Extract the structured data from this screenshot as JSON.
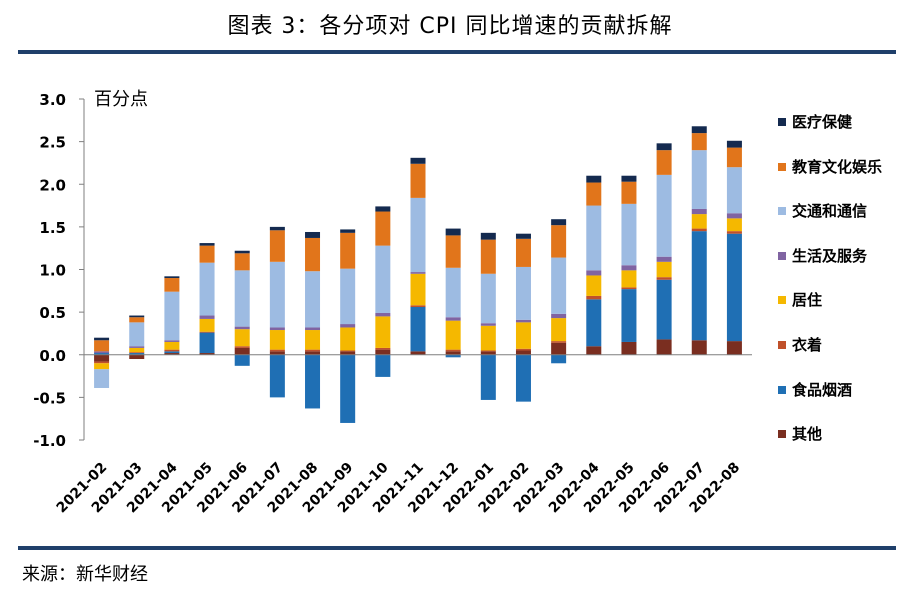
{
  "header": {
    "title": "图表 3：各分项对 CPI 同比增速的贡献拆解"
  },
  "footer": {
    "source": "来源：新华财经"
  },
  "chart_data": {
    "type": "bar",
    "stacked": true,
    "unit_label": "百分点",
    "ylim": [
      -1.0,
      3.0
    ],
    "yticks": [
      "3.0",
      "2.5",
      "2.0",
      "1.5",
      "1.0",
      "0.5",
      "0.0",
      "-0.5",
      "-1.0"
    ],
    "ytick_values": [
      3.0,
      2.5,
      2.0,
      1.5,
      1.0,
      0.5,
      0.0,
      -0.5,
      -1.0
    ],
    "legend_position": "right",
    "categories": [
      "2021-02",
      "2021-03",
      "2021-04",
      "2021-05",
      "2021-06",
      "2021-07",
      "2021-08",
      "2021-09",
      "2021-10",
      "2021-11",
      "2021-12",
      "2022-01",
      "2022-02",
      "2022-03",
      "2022-04",
      "2022-05",
      "2022-06",
      "2022-07",
      "2022-08"
    ],
    "series": [
      {
        "name": "其他",
        "color": "#7a2e20",
        "values": [
          -0.08,
          -0.05,
          0.02,
          0.02,
          0.08,
          0.04,
          0.04,
          0.04,
          0.06,
          0.04,
          0.04,
          0.04,
          0.05,
          0.14,
          0.1,
          0.15,
          0.18,
          0.17,
          0.16
        ]
      },
      {
        "name": "食品烟酒",
        "color": "#1f6fb4",
        "values": [
          0.02,
          0.02,
          0.02,
          0.24,
          -0.13,
          -0.5,
          -0.63,
          -0.8,
          -0.26,
          0.52,
          -0.03,
          -0.53,
          -0.55,
          -0.1,
          0.55,
          0.62,
          0.7,
          1.28,
          1.26
        ]
      },
      {
        "name": "衣着",
        "color": "#c0502a",
        "values": [
          -0.02,
          0.01,
          0.02,
          0.01,
          0.02,
          0.02,
          0.02,
          0.01,
          0.02,
          0.02,
          0.02,
          0.01,
          0.02,
          0.02,
          0.04,
          0.02,
          0.03,
          0.03,
          0.03
        ]
      },
      {
        "name": "居住",
        "color": "#f5b800",
        "values": [
          -0.07,
          0.05,
          0.09,
          0.15,
          0.2,
          0.23,
          0.23,
          0.27,
          0.37,
          0.37,
          0.34,
          0.29,
          0.31,
          0.27,
          0.24,
          0.2,
          0.18,
          0.17,
          0.15
        ]
      },
      {
        "name": "生活及服务",
        "color": "#8064a2",
        "values": [
          0.02,
          0.02,
          0.02,
          0.04,
          0.03,
          0.03,
          0.03,
          0.04,
          0.04,
          0.02,
          0.04,
          0.03,
          0.03,
          0.05,
          0.06,
          0.06,
          0.06,
          0.06,
          0.06
        ]
      },
      {
        "name": "交通和通信",
        "color": "#9dbbe2",
        "values": [
          -0.22,
          0.28,
          0.57,
          0.62,
          0.66,
          0.77,
          0.66,
          0.65,
          0.79,
          0.87,
          0.58,
          0.58,
          0.62,
          0.66,
          0.76,
          0.72,
          0.96,
          0.69,
          0.54
        ]
      },
      {
        "name": "教育文化娱乐",
        "color": "#e1751b",
        "values": [
          0.13,
          0.06,
          0.16,
          0.2,
          0.2,
          0.37,
          0.39,
          0.42,
          0.4,
          0.4,
          0.38,
          0.4,
          0.33,
          0.38,
          0.27,
          0.26,
          0.29,
          0.2,
          0.23
        ]
      },
      {
        "name": "医疗保健",
        "color": "#142a4f",
        "values": [
          0.03,
          0.02,
          0.02,
          0.03,
          0.03,
          0.04,
          0.07,
          0.04,
          0.06,
          0.07,
          0.08,
          0.08,
          0.06,
          0.07,
          0.08,
          0.07,
          0.08,
          0.08,
          0.08
        ]
      }
    ],
    "legend_order": [
      "医疗保健",
      "教育文化娱乐",
      "交通和通信",
      "生活及服务",
      "居住",
      "衣着",
      "食品烟酒",
      "其他"
    ]
  }
}
